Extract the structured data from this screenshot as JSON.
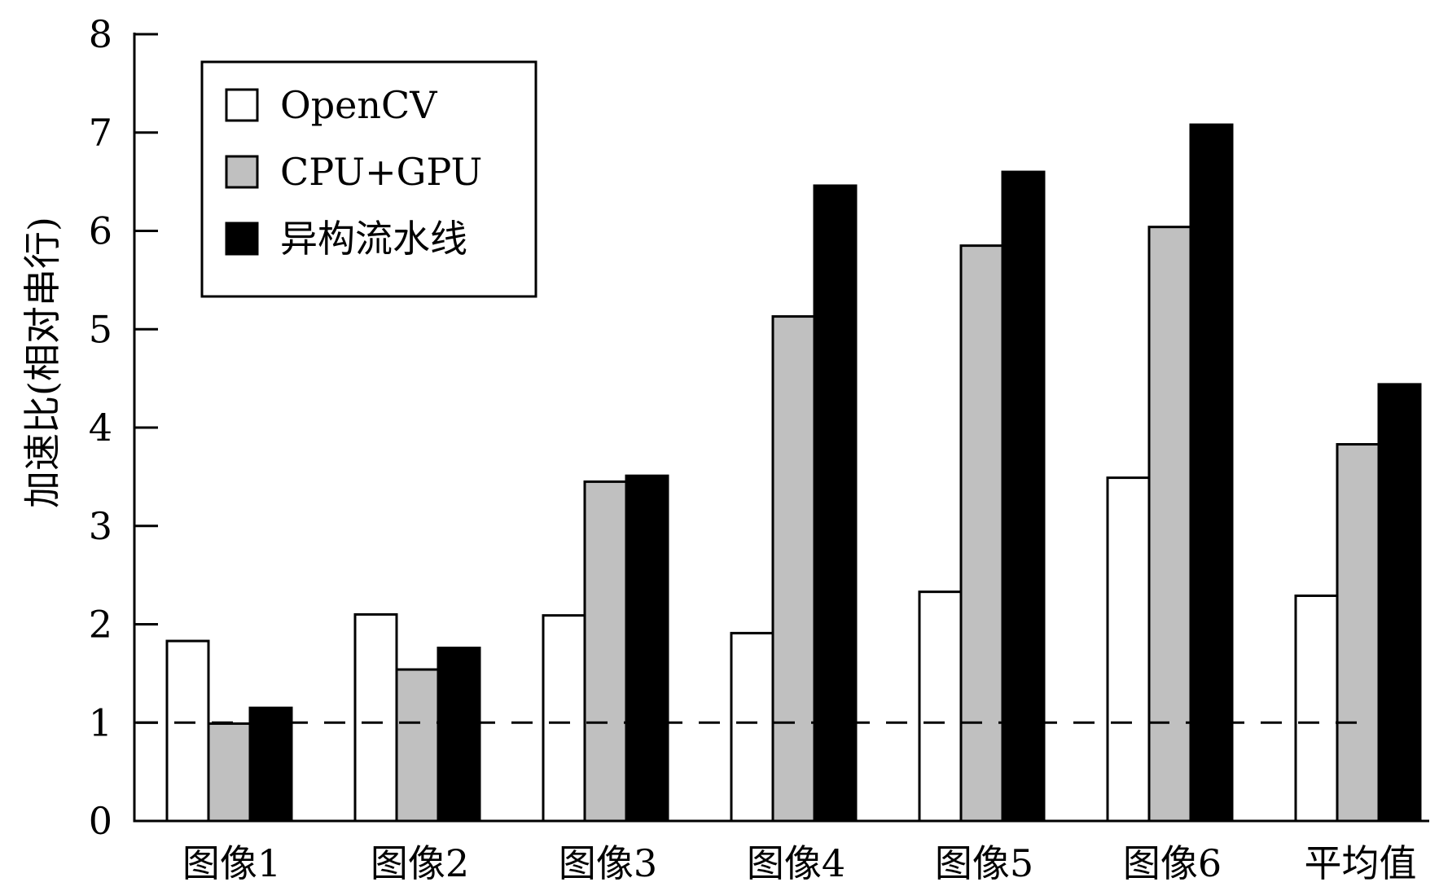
{
  "chart_data": {
    "type": "bar",
    "title": "",
    "xlabel": "",
    "ylabel": "加速比(相对串行)",
    "ylim": [
      0,
      8
    ],
    "yticks": [
      0,
      1,
      2,
      3,
      4,
      5,
      6,
      7,
      8
    ],
    "categories": [
      "图像1",
      "图像2",
      "图像3",
      "图像4",
      "图像5",
      "图像6",
      "平均值"
    ],
    "series": [
      {
        "name": "OpenCV",
        "color": "#ffffff",
        "values": [
          1.83,
          2.1,
          2.09,
          1.91,
          2.33,
          3.49,
          2.29
        ]
      },
      {
        "name": "CPU+GPU",
        "color": "#c0c0c0",
        "values": [
          0.99,
          1.54,
          3.45,
          5.13,
          5.85,
          6.04,
          3.83
        ]
      },
      {
        "name": "异构流水线",
        "color": "#000000",
        "values": [
          1.15,
          1.76,
          3.51,
          6.46,
          6.6,
          7.08,
          4.44
        ]
      }
    ],
    "reference_line": {
      "y": 1,
      "style": "dashed"
    },
    "legend": {
      "position": "top-left"
    },
    "grid": false
  }
}
